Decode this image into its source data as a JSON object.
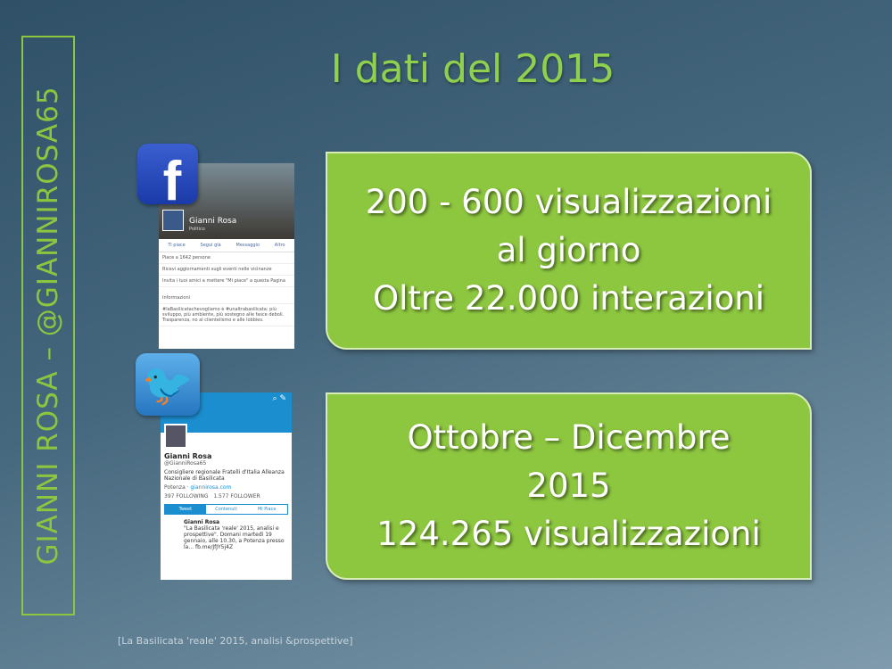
{
  "sidebar": {
    "text": "GIANNI ROSA – @GIANNIROSA65"
  },
  "title": "I dati del 2015",
  "facebook": {
    "name": "Gianni Rosa",
    "subtitle": "Politico",
    "actions": [
      "Ti piace",
      "Segui già",
      "Messaggio",
      "Altro"
    ],
    "rows": [
      "Piace a 1642 persone",
      "Ricevi aggiornamenti sugli eventi nelle vicinanze",
      "Invita i tuoi amici a mettere \"Mi piace\" a questa Pagina",
      "Informazioni",
      "#laBasilicatachevogliamo è #unaltrabasilicata: più sviluppo, più ambiente, più sostegno alle fasce deboli. Trasparenza, no al clientelismo e alle lobbies."
    ]
  },
  "twitter": {
    "name": "Gianni Rosa",
    "handle": "@GianniRosa65",
    "bio": "Consigliere regionale Fratelli d'Italia Alleanza Nazionale di Basilicata",
    "location": "Potenza",
    "site": "giannirosa.com",
    "following": "397 FOLLOWING",
    "followers": "1.577 FOLLOWER",
    "tabs": [
      "Tweet",
      "Contenuti",
      "Mi Piace"
    ],
    "tweet": "\"La Basilicata 'reale' 2015, analisi e prospettive\". Domani martedì 19 gennaio, alle 10.30, a Potenza presso la... fb.me/JfJY5j4Z"
  },
  "box1": {
    "lines": [
      "200 - 600 visualizzazioni",
      "al giorno",
      "Oltre 22.000 interazioni"
    ]
  },
  "box2": {
    "lines": [
      "Ottobre – Dicembre",
      "2015",
      "124.265 visualizzazioni"
    ]
  },
  "footer": "[La Basilicata 'reale' 2015, analisi &prospettive]",
  "colors": {
    "accent": "#8dc63f",
    "title": "#8fd14f"
  }
}
